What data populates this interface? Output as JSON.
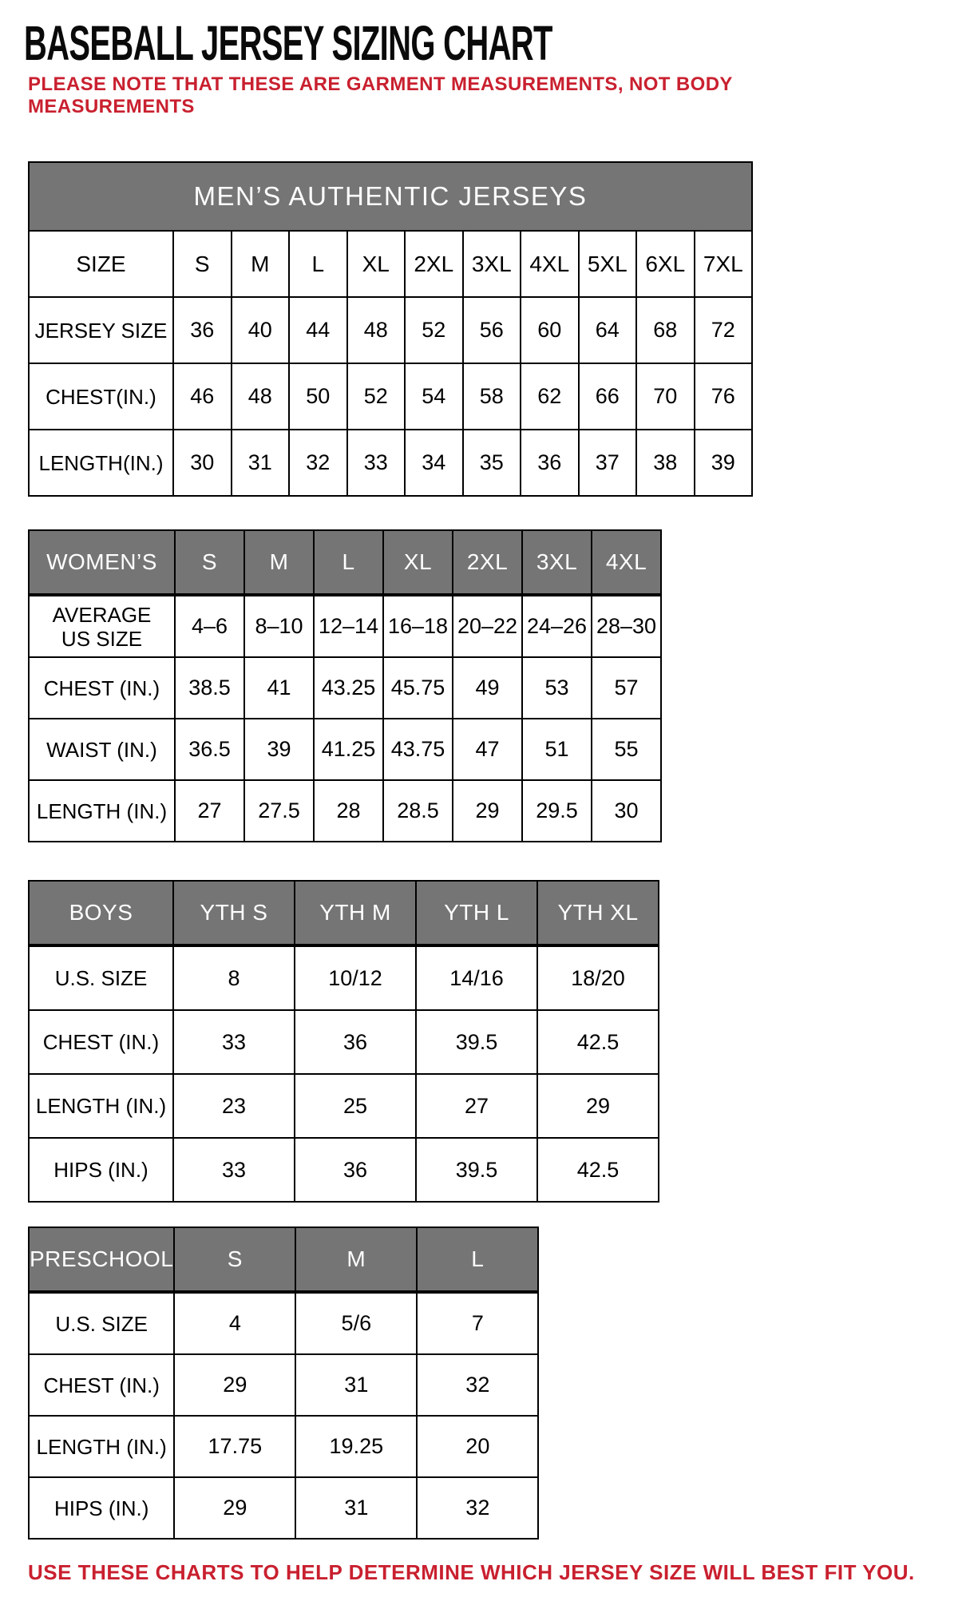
{
  "page": {
    "title": "BASEBALL JERSEY SIZING CHART",
    "note_line1": "PLEASE NOTE THAT THESE ARE GARMENT MEASUREMENTS, NOT BODY",
    "note_line2": "MEASUREMENTS",
    "footer": "USE THESE CHARTS TO HELP DETERMINE WHICH JERSEY SIZE WILL BEST FIT YOU.",
    "colors": {
      "header_gray": "#757575",
      "accent_red": "#c9202f",
      "border_black": "#000000"
    }
  },
  "tables": [
    {
      "id": "mens",
      "title": "MEN’S AUTHENTIC JERSEYS",
      "header": [
        "SIZE",
        "S",
        "M",
        "L",
        "XL",
        "2XL",
        "3XL",
        "4XL",
        "5XL",
        "6XL",
        "7XL"
      ],
      "rows": [
        {
          "label": "JERSEY SIZE",
          "values": [
            "36",
            "40",
            "44",
            "48",
            "52",
            "56",
            "60",
            "64",
            "68",
            "72"
          ]
        },
        {
          "label": "CHEST(IN.)",
          "values": [
            "46",
            "48",
            "50",
            "52",
            "54",
            "58",
            "62",
            "66",
            "70",
            "76"
          ]
        },
        {
          "label": "LENGTH(IN.)",
          "values": [
            "30",
            "31",
            "32",
            "33",
            "34",
            "35",
            "36",
            "37",
            "38",
            "39"
          ]
        }
      ]
    },
    {
      "id": "womens",
      "header": [
        "WOMEN’S",
        "S",
        "M",
        "L",
        "XL",
        "2XL",
        "3XL",
        "4XL"
      ],
      "rows": [
        {
          "label": "AVERAGE\nUS SIZE",
          "values": [
            "4–6",
            "8–10",
            "12–14",
            "16–18",
            "20–22",
            "24–26",
            "28–30"
          ]
        },
        {
          "label": "CHEST (IN.)",
          "values": [
            "38.5",
            "41",
            "43.25",
            "45.75",
            "49",
            "53",
            "57"
          ]
        },
        {
          "label": "WAIST (IN.)",
          "values": [
            "36.5",
            "39",
            "41.25",
            "43.75",
            "47",
            "51",
            "55"
          ]
        },
        {
          "label": "LENGTH (IN.)",
          "values": [
            "27",
            "27.5",
            "28",
            "28.5",
            "29",
            "29.5",
            "30"
          ]
        }
      ]
    },
    {
      "id": "boys",
      "header": [
        "BOYS",
        "YTH S",
        "YTH M",
        "YTH L",
        "YTH XL"
      ],
      "rows": [
        {
          "label": "U.S. SIZE",
          "values": [
            "8",
            "10/12",
            "14/16",
            "18/20"
          ]
        },
        {
          "label": "CHEST (IN.)",
          "values": [
            "33",
            "36",
            "39.5",
            "42.5"
          ]
        },
        {
          "label": "LENGTH (IN.)",
          "values": [
            "23",
            "25",
            "27",
            "29"
          ]
        },
        {
          "label": "HIPS (IN.)",
          "values": [
            "33",
            "36",
            "39.5",
            "42.5"
          ]
        }
      ]
    },
    {
      "id": "preschool",
      "header": [
        "PRESCHOOL",
        "S",
        "M",
        "L"
      ],
      "rows": [
        {
          "label": "U.S. SIZE",
          "values": [
            "4",
            "5/6",
            "7"
          ]
        },
        {
          "label": "CHEST (IN.)",
          "values": [
            "29",
            "31",
            "32"
          ]
        },
        {
          "label": "LENGTH (IN.)",
          "values": [
            "17.75",
            "19.25",
            "20"
          ]
        },
        {
          "label": "HIPS (IN.)",
          "values": [
            "29",
            "31",
            "32"
          ]
        }
      ]
    }
  ]
}
